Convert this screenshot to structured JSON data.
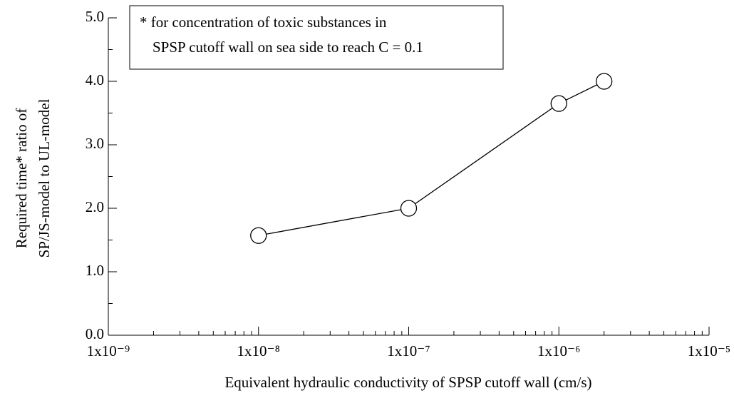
{
  "chart_data": {
    "type": "line",
    "ylabel": [
      "Required time* ratio of",
      "SP/JS-model to UL-model"
    ],
    "xlabel": "Equivalent hydraulic conductivity of SPSP cutoff wall  (cm/s)",
    "annotation": [
      "* for concentration of toxic substances in",
      "SPSP cutoff wall on sea side to reach C = 0.1"
    ],
    "x": [
      1e-08,
      1e-07,
      1e-06,
      2e-06
    ],
    "series": [
      {
        "color": "#000000",
        "values": [
          1.57,
          2.0,
          3.65,
          4.0
        ]
      }
    ],
    "xlim": [
      1e-09,
      1e-05
    ],
    "xscale": "log",
    "xticks": [
      {
        "value": 1e-09,
        "label": "1x10⁻⁹"
      },
      {
        "value": 1e-08,
        "label": "1x10⁻⁸"
      },
      {
        "value": 1e-07,
        "label": "1x10⁻⁷"
      },
      {
        "value": 1e-06,
        "label": "1x10⁻⁶"
      },
      {
        "value": 1e-05,
        "label": "1x10⁻⁵"
      }
    ],
    "ylim": [
      0,
      5
    ],
    "yticks": [
      {
        "value": 0,
        "label": "0.0"
      },
      {
        "value": 1,
        "label": "1.0"
      },
      {
        "value": 2,
        "label": "2.0"
      },
      {
        "value": 3,
        "label": "3.0"
      },
      {
        "value": 4,
        "label": "4.0"
      },
      {
        "value": 5,
        "label": "5.0"
      }
    ],
    "grid": false
  }
}
